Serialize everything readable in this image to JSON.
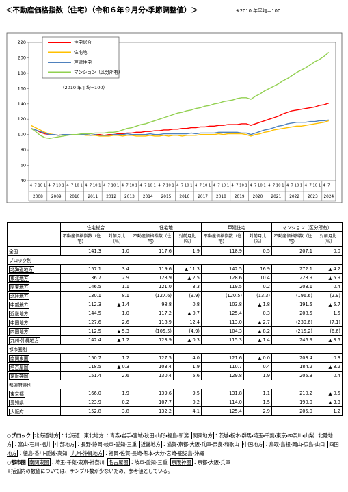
{
  "header": {
    "title": "＜不動産価格指数（住宅）（令和６年９月分・季節調整値）＞",
    "note": "※2010 年平均＝100"
  },
  "chart_data": {
    "type": "line",
    "annotation": "（2010 年平均=100）",
    "categories": [
      "4",
      "7",
      "10",
      "1",
      "4",
      "7",
      "10",
      "1",
      "4",
      "7",
      "10",
      "1",
      "4",
      "7",
      "10",
      "1",
      "4",
      "7",
      "10",
      "1",
      "4",
      "7",
      "10",
      "1",
      "4",
      "7",
      "10",
      "1",
      "4",
      "7",
      "10",
      "1",
      "4",
      "7",
      "10",
      "1",
      "4",
      "7",
      "10",
      "1",
      "4",
      "7",
      "10",
      "1",
      "4",
      "7",
      "10",
      "1",
      "4",
      "7",
      "10",
      "1",
      "4",
      "7",
      "10",
      "1",
      "4",
      "7",
      "10",
      "1",
      "4",
      "7",
      "10",
      "1",
      "4",
      "7"
    ],
    "year_groups": [
      "2008",
      "2009",
      "2010",
      "2011",
      "2012",
      "2013",
      "2014",
      "2015",
      "2016",
      "2017",
      "2018",
      "2019",
      "2020",
      "2021",
      "2022",
      "2023",
      "2024"
    ],
    "ylim": [
      40,
      220
    ],
    "yticks": [
      40,
      60,
      80,
      100,
      120,
      140,
      160,
      180,
      200,
      220
    ],
    "grid": false,
    "series": [
      {
        "name": "住宅総合",
        "color": "#ff0000",
        "values": [
          108,
          106,
          103,
          101,
          100,
          100,
          99,
          100,
          100,
          100,
          100,
          100,
          100,
          99,
          100,
          100,
          99,
          100,
          100,
          101,
          101,
          102,
          102,
          103,
          103,
          104,
          104,
          105,
          105,
          106,
          106,
          107,
          107,
          108,
          108,
          109,
          109,
          110,
          110,
          111,
          111,
          112,
          112,
          113,
          113,
          113,
          114,
          114,
          112,
          114,
          116,
          118,
          120,
          122,
          124,
          127,
          129,
          131,
          132,
          133,
          134,
          135,
          136,
          138,
          139,
          141
        ]
      },
      {
        "name": "住宅地",
        "color": "#ffc000",
        "values": [
          112,
          109,
          106,
          103,
          101,
          100,
          99,
          100,
          100,
          100,
          100,
          100,
          99,
          99,
          99,
          98,
          98,
          98,
          99,
          99,
          98,
          99,
          99,
          98,
          98,
          98,
          99,
          98,
          98,
          99,
          98,
          99,
          99,
          98,
          99,
          99,
          99,
          100,
          100,
          100,
          100,
          101,
          100,
          101,
          101,
          101,
          101,
          100,
          98,
          100,
          101,
          103,
          104,
          106,
          107,
          108,
          109,
          110,
          111,
          111,
          112,
          113,
          114,
          115,
          116,
          118
        ]
      },
      {
        "name": "戸建住宅",
        "color": "#4f81bd",
        "values": [
          108,
          106,
          104,
          102,
          100,
          100,
          99,
          100,
          100,
          100,
          100,
          100,
          100,
          99,
          100,
          99,
          99,
          99,
          100,
          100,
          100,
          101,
          100,
          100,
          100,
          100,
          101,
          100,
          100,
          101,
          101,
          101,
          101,
          101,
          101,
          102,
          101,
          102,
          102,
          102,
          102,
          103,
          103,
          103,
          103,
          103,
          102,
          102,
          100,
          102,
          104,
          106,
          107,
          109,
          111,
          112,
          114,
          115,
          116,
          116,
          116,
          117,
          117,
          118,
          118,
          119
        ]
      },
      {
        "name": "マンション（区分所有）",
        "color": "#92d050",
        "values": [
          108,
          104,
          99,
          96,
          95,
          96,
          97,
          98,
          99,
          100,
          100,
          101,
          101,
          101,
          102,
          102,
          102,
          103,
          103,
          104,
          106,
          108,
          109,
          111,
          113,
          114,
          116,
          118,
          120,
          122,
          124,
          126,
          128,
          129,
          131,
          132,
          134,
          135,
          137,
          138,
          140,
          141,
          143,
          144,
          145,
          147,
          148,
          148,
          146,
          150,
          153,
          157,
          160,
          163,
          166,
          170,
          173,
          177,
          181,
          184,
          187,
          191,
          195,
          198,
          202,
          207
        ]
      }
    ]
  },
  "table": {
    "groups": [
      "住宅総合",
      "住宅地",
      "戸建住宅",
      "マンション（区分所有）"
    ],
    "sub_headers": [
      "不動産価格指数（住宅）",
      "対前月比（％）"
    ],
    "rows": [
      {
        "label": "全国",
        "cells": [
          "141.3",
          "1.0",
          "117.6",
          "1.9",
          "118.9",
          "0.5",
          "207.1",
          "0.0"
        ]
      },
      {
        "section": "ブロック別"
      },
      {
        "label": "北海道地方",
        "boxed": true,
        "cells": [
          "157.1",
          "3.4",
          "119.6",
          "▲ 11.3",
          "142.5",
          "16.9",
          "272.1",
          "▲ 4.2"
        ]
      },
      {
        "label": "東北地方",
        "boxed": true,
        "cells": [
          "136.7",
          "2.9",
          "123.9",
          "▲ 2.5",
          "128.6",
          "10.4",
          "223.9",
          "▲ 5.9"
        ]
      },
      {
        "label": "関東地方",
        "boxed": true,
        "cells": [
          "146.5",
          "1.1",
          "121.0",
          "3.3",
          "119.5",
          "0.2",
          "203.1",
          "0.4"
        ]
      },
      {
        "label": "北陸地方",
        "boxed": true,
        "cells": [
          "130.1",
          "8.1",
          "(127.6)",
          "(9.9)",
          "(120.5)",
          "(13.3)",
          "(196.6)",
          "(2.9)"
        ]
      },
      {
        "label": "中部地方",
        "boxed": true,
        "cells": [
          "112.3",
          "▲ 1.4",
          "98.8",
          "0.8",
          "103.8",
          "▲ 1.8",
          "191.5",
          "▲ 5.7"
        ]
      },
      {
        "label": "近畿地方",
        "boxed": true,
        "cells": [
          "144.5",
          "1.0",
          "117.2",
          "▲ 0.7",
          "125.4",
          "0.3",
          "208.5",
          "1.5"
        ]
      },
      {
        "label": "中国地方",
        "boxed": true,
        "cells": [
          "127.6",
          "2.6",
          "118.9",
          "12.4",
          "113.0",
          "▲ 2.7",
          "(239.6)",
          "(7.1)"
        ]
      },
      {
        "label": "四国地方",
        "boxed": true,
        "cells": [
          "112.5",
          "▲ 5.3",
          "(105.5)",
          "(4.9)",
          "104.3",
          "▲ 8.2",
          "(215.2)",
          "(6.6)"
        ]
      },
      {
        "label": "九州・沖縄地方",
        "boxed": true,
        "cells": [
          "142.4",
          "▲ 1.2",
          "123.9",
          "▲ 0.3",
          "115.3",
          "▲ 1.4",
          "246.9",
          "▲ 3.5"
        ]
      },
      {
        "section": "都市圏別"
      },
      {
        "label": "南関東圏",
        "boxed": true,
        "cells": [
          "150.7",
          "1.2",
          "127.5",
          "4.0",
          "121.6",
          "▲ 0.0",
          "203.4",
          "0.3"
        ]
      },
      {
        "label": "名古屋圏",
        "boxed": true,
        "cells": [
          "118.5",
          "▲ 0.3",
          "103.4",
          "1.9",
          "110.7",
          "0.4",
          "184.2",
          "▲ 3.2"
        ]
      },
      {
        "label": "京阪神圏",
        "boxed": true,
        "cells": [
          "151.4",
          "2.6",
          "130.4",
          "5.6",
          "129.8",
          "1.9",
          "205.3",
          "0.4"
        ]
      },
      {
        "section": "都道府県別"
      },
      {
        "label": "東京都",
        "boxed": true,
        "cells": [
          "166.0",
          "1.9",
          "139.6",
          "9.5",
          "131.8",
          "1.1",
          "210.2",
          "▲ 0.5"
        ]
      },
      {
        "label": "愛知県",
        "boxed": true,
        "cells": [
          "123.9",
          "0.2",
          "107.7",
          "0.2",
          "114.0",
          "1.5",
          "190.0",
          "▲ 3.3"
        ]
      },
      {
        "label": "大阪府",
        "boxed": true,
        "cells": [
          "152.8",
          "3.8",
          "132.2",
          "4.1",
          "125.4",
          "2.9",
          "205.0",
          "1.2"
        ]
      }
    ]
  },
  "notes": {
    "blocks": {
      "heading": "○ブロック",
      "items": [
        {
          "label": "北海道地方",
          "members": "：北海道"
        },
        {
          "label": "東北地方",
          "members": "：青森・岩手・宮城・秋田・山形・福島・新潟"
        },
        {
          "label": "関東地方",
          "members": "：茨城・栃木・群馬・埼玉・千葉・東京・神奈川・山梨"
        },
        {
          "label": "北陸地方",
          "members": "：富山・石川・福井"
        },
        {
          "label": "中部地方",
          "members": "：長野・静岡・岐阜・愛知・三重"
        },
        {
          "label": "近畿地方",
          "members": "：滋賀・京都・大阪・兵庫・奈良・和歌山"
        },
        {
          "label": "中国地方",
          "members": "：鳥取・島根・岡山・広島・山口"
        },
        {
          "label": "四国地方",
          "members": "：徳島・香川・愛媛・高知"
        },
        {
          "label": "九州・沖縄地方",
          "members": "：福岡・佐賀・長崎・熊本・大分・宮崎・鹿児島・沖縄"
        }
      ]
    },
    "metros": {
      "heading": "○都市圏",
      "items": [
        {
          "label": "南関東圏",
          "members": "：埼玉・千葉・東京・神奈川"
        },
        {
          "label": "名古屋圏",
          "members": "：岐阜・愛知・三重"
        },
        {
          "label": "京阪神圏",
          "members": "：京都・大阪・兵庫"
        }
      ]
    },
    "footnote": "※括弧内の数値については、サンプル数が少ないため、参考値としている。"
  }
}
